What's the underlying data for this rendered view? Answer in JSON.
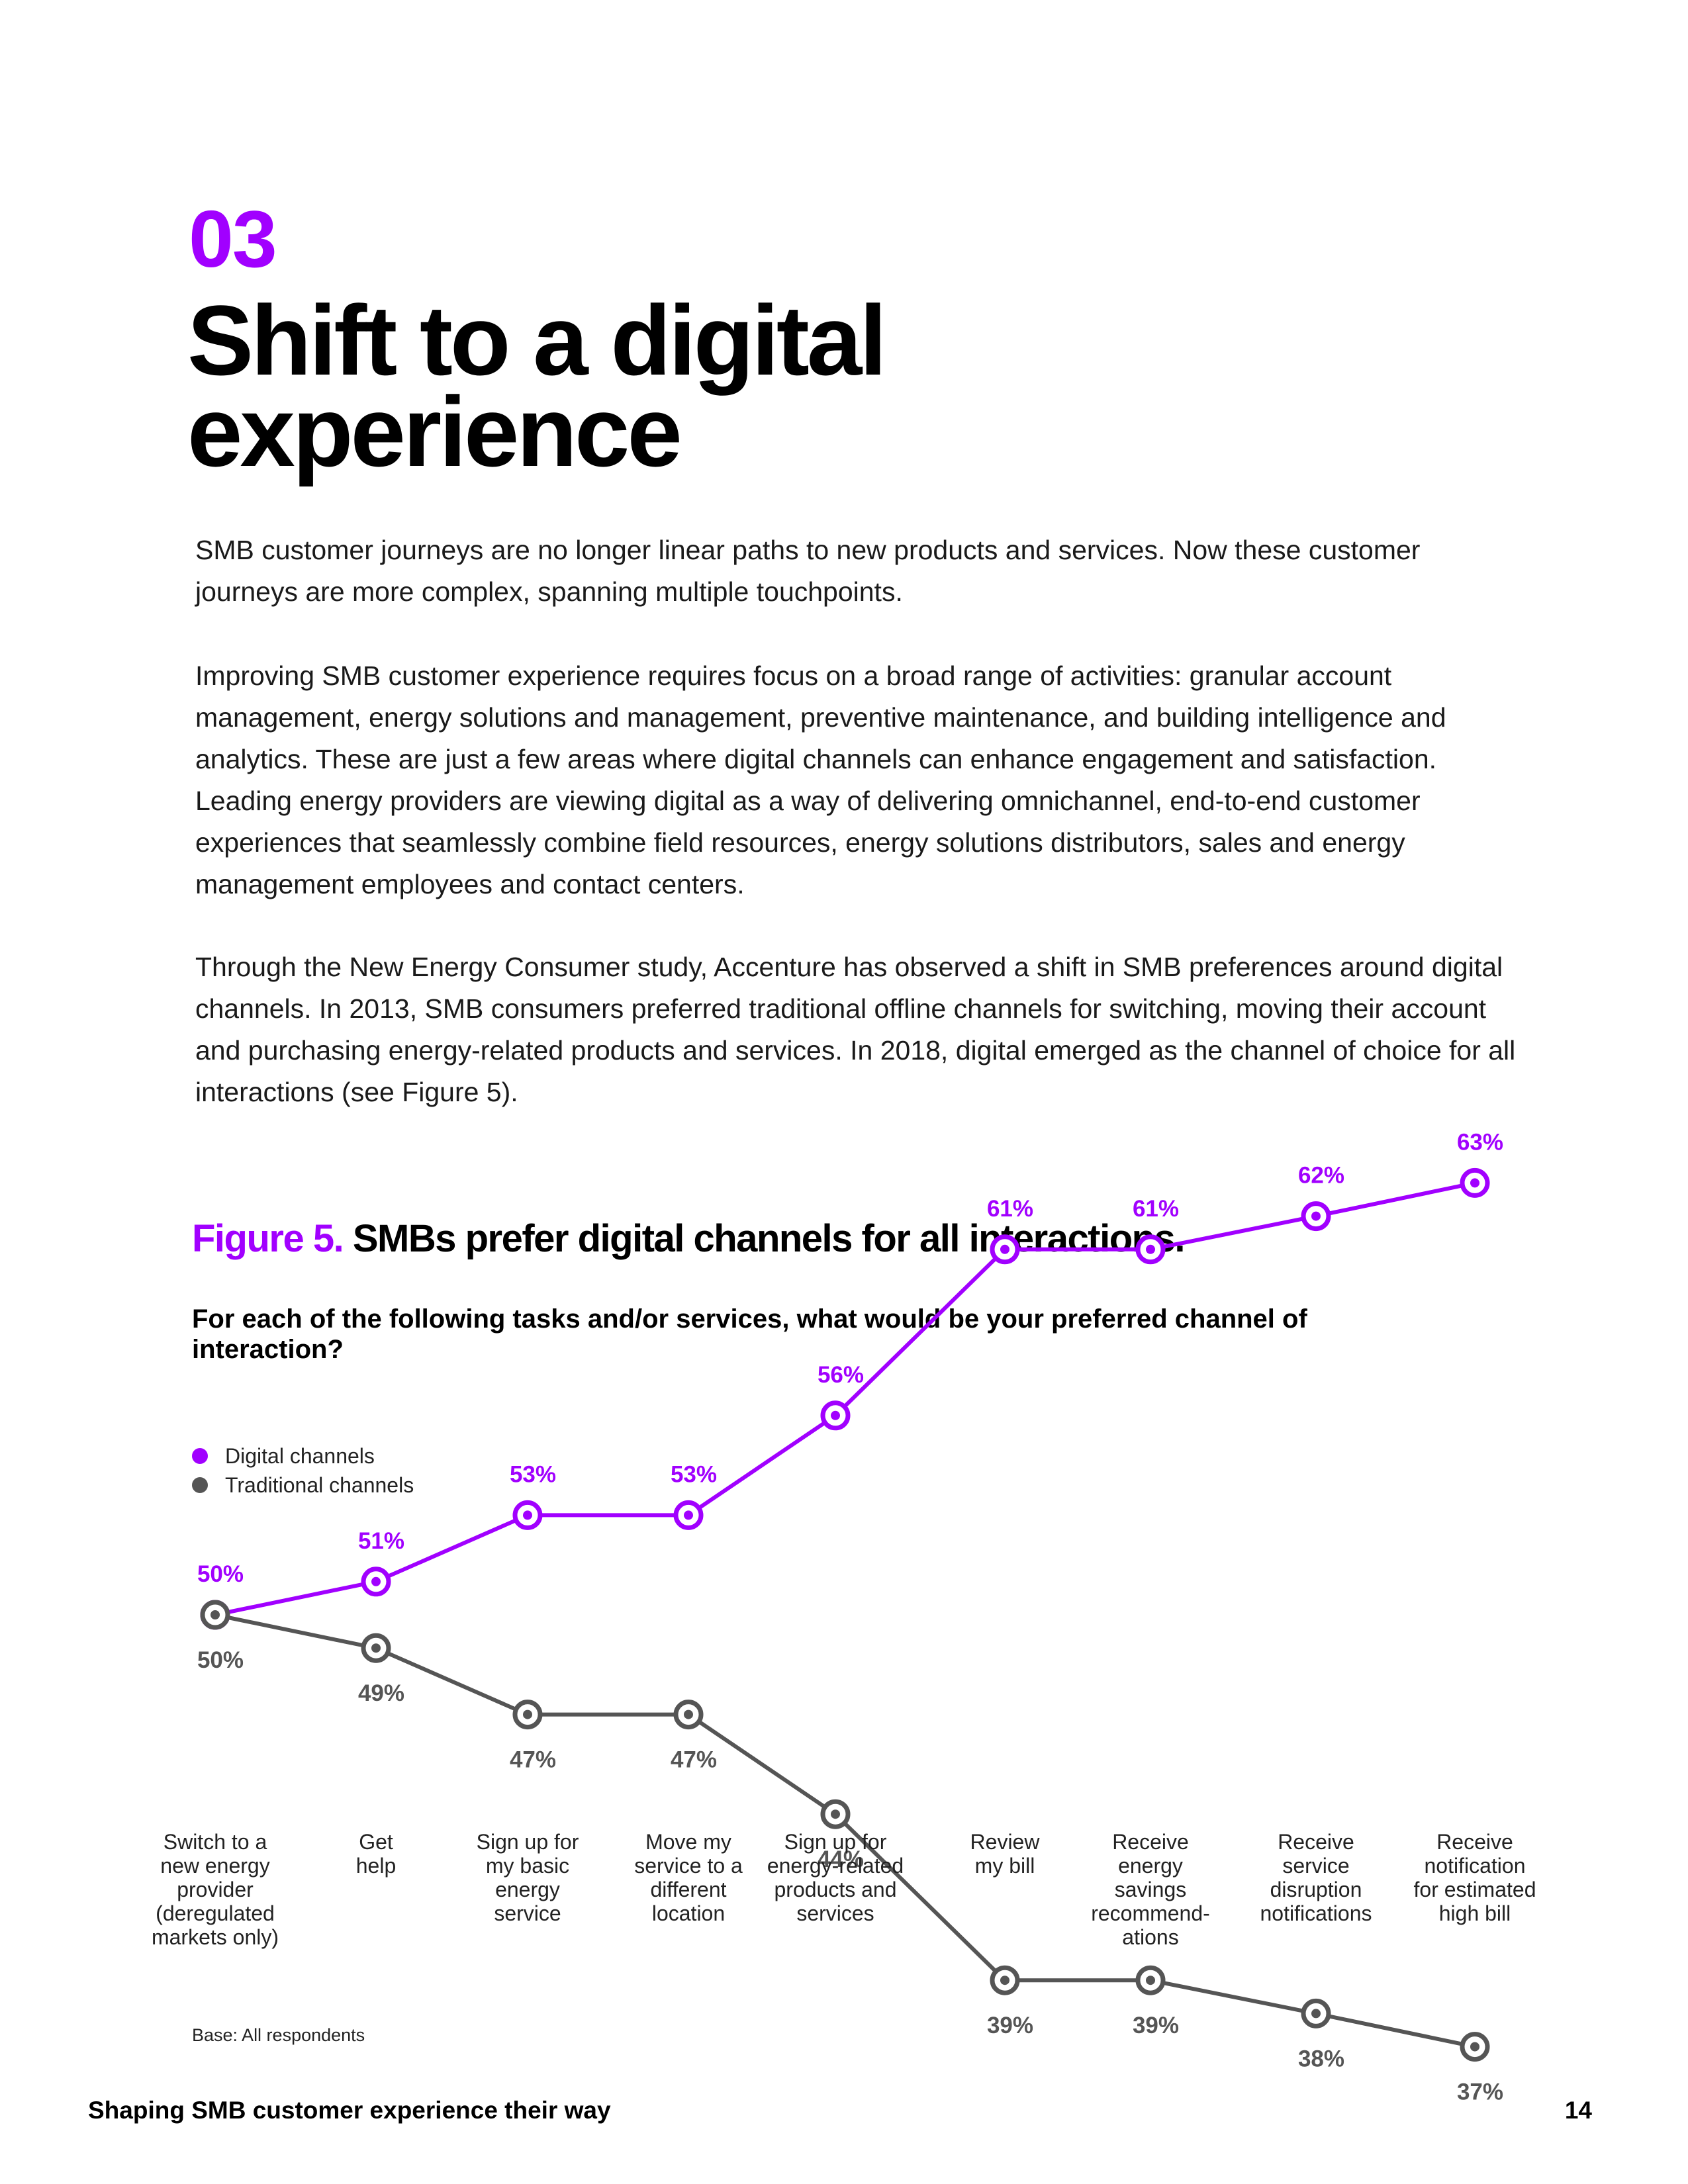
{
  "header": {
    "section_number": "03",
    "title": "Shift to a digital experience"
  },
  "body": {
    "paragraph_1": "SMB customer journeys are no longer linear paths to new products and services. Now these customer journeys are more complex, spanning multiple touchpoints.",
    "paragraph_2": "Improving SMB customer experience requires focus on a broad range of activities: granular account management, energy solutions and management, preventive maintenance, and building intelligence and analytics. These are just a few areas where digital channels can enhance engagement and satisfaction. Leading energy providers are viewing digital as a way of delivering omnichannel, end-to-end customer experiences that seamlessly combine field resources, energy solutions distributors, sales and energy management employees and contact centers.",
    "paragraph_3": "Through the New Energy Consumer study, Accenture has observed a shift in SMB preferences around digital channels. In 2013, SMB consumers preferred traditional offline channels for switching, moving their account and purchasing energy-related products and services. In 2018, digital emerged as the channel of choice for all interactions (see Figure 5)."
  },
  "figure": {
    "label": "Figure 5.",
    "title": "SMBs prefer digital channels for all interactions.",
    "question": "For each of the following tasks and/or services, what would be your preferred channel of interaction?",
    "base_note": "Base: All respondents"
  },
  "chart_data": {
    "type": "line",
    "categories": [
      "Switch to a\nnew energy\nprovider\n(deregulated\nmarkets only)",
      "Get\nhelp",
      "Sign up for\nmy basic\nenergy\nservice",
      "Move my\nservice to a\ndifferent\nlocation",
      "Sign up for\nenergy-related\nproducts and\nservices",
      "Review\nmy bill",
      "Receive\nenergy\nsavings\nrecommend-\nations",
      "Receive\nservice\ndisruption\nnotifications",
      "Receive\nnotification\nfor estimated\nhigh bill"
    ],
    "series": [
      {
        "name": "Digital channels",
        "color": "#a100ff",
        "values": [
          50,
          51,
          53,
          53,
          56,
          61,
          61,
          62,
          63
        ],
        "labels": [
          "50%",
          "51%",
          "53%",
          "53%",
          "56%",
          "61%",
          "61%",
          "62%",
          "63%"
        ]
      },
      {
        "name": "Traditional channels",
        "color": "#555555",
        "values": [
          50,
          49,
          47,
          47,
          44,
          39,
          39,
          38,
          37
        ],
        "labels": [
          "50%",
          "49%",
          "47%",
          "47%",
          "44%",
          "39%",
          "39%",
          "38%",
          "37%"
        ]
      }
    ],
    "legend_position": "top-left",
    "grid": false
  },
  "footer": {
    "document_title": "Shaping SMB customer experience their way",
    "page_number": "14"
  }
}
